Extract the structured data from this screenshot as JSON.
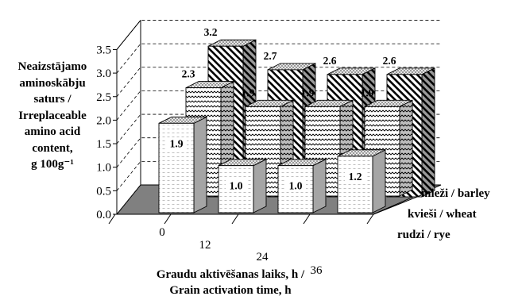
{
  "chart_data": {
    "type": "bar",
    "subtype": "3d-clustered-depth",
    "ylabel": [
      "Neaizstājamo",
      "aminoskābju",
      "saturs /",
      "Irreplaceable",
      "amino acid",
      "content,",
      "g 100g⁻¹"
    ],
    "xlabel": [
      "Graudu aktivēšanas laiks, h /",
      "Grain activation time, h"
    ],
    "categories": [
      "0",
      "12",
      "24",
      "36"
    ],
    "ylim": [
      0,
      3.5
    ],
    "yticks": [
      "0.0",
      "0.5",
      "1.0",
      "1.5",
      "2.0",
      "2.5",
      "3.0",
      "3.5"
    ],
    "grid": true,
    "series": [
      {
        "name": "rudzi / rye",
        "values": [
          1.9,
          1.0,
          1.0,
          1.2
        ],
        "pattern": "dots",
        "color": "#ffffff"
      },
      {
        "name": "kvieši / wheat",
        "values": [
          2.3,
          1.9,
          1.9,
          1.9
        ],
        "pattern": "waves",
        "color": "#ffffff"
      },
      {
        "name": "mieži / barley",
        "values": [
          3.2,
          2.7,
          2.6,
          2.6
        ],
        "pattern": "diagonal",
        "color": "#ffffff"
      }
    ],
    "data_labels": {
      "rudzi / rye": [
        "1.9",
        "1.0",
        "1.0",
        "1.2"
      ],
      "kvieši / wheat": [
        "2.3",
        "1.9",
        "1.9",
        "1.9"
      ],
      "mieži / barley": [
        "3.2",
        "2.7",
        "2.6",
        "2.6"
      ]
    },
    "floor_color": "#808080",
    "legend_position": "right, along depth axis"
  }
}
